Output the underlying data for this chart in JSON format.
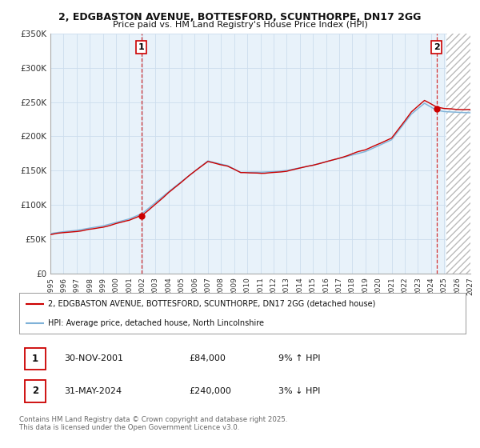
{
  "title1": "2, EDGBASTON AVENUE, BOTTESFORD, SCUNTHORPE, DN17 2GG",
  "title2": "Price paid vs. HM Land Registry's House Price Index (HPI)",
  "ylabel_ticks": [
    "£0",
    "£50K",
    "£100K",
    "£150K",
    "£200K",
    "£250K",
    "£300K",
    "£350K"
  ],
  "ylim": [
    0,
    350000
  ],
  "xlim_start": 1995.0,
  "xlim_end": 2027.0,
  "sale1_x": 2001.92,
  "sale1_price": 84000,
  "sale2_x": 2024.42,
  "sale2_price": 240000,
  "red_color": "#cc0000",
  "blue_color": "#7fb2d8",
  "blue_fill": "#ddeef8",
  "legend_red": "2, EDGBASTON AVENUE, BOTTESFORD, SCUNTHORPE, DN17 2GG (detached house)",
  "legend_blue": "HPI: Average price, detached house, North Lincolnshire",
  "table_row1": [
    "1",
    "30-NOV-2001",
    "£84,000",
    "9% ↑ HPI"
  ],
  "table_row2": [
    "2",
    "31-MAY-2024",
    "£240,000",
    "3% ↓ HPI"
  ],
  "footer": "Contains HM Land Registry data © Crown copyright and database right 2025.\nThis data is licensed under the Open Government Licence v3.0.",
  "bg_color": "#ffffff",
  "grid_color": "#ccddee",
  "hatch_start": 2025.17
}
